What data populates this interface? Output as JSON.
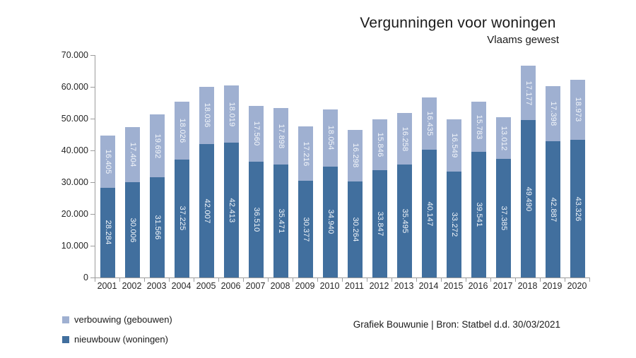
{
  "title": "Vergunningen voor woningen",
  "subtitle": "Vlaams gewest",
  "source": "Grafiek Bouwunie | Bron: Statbel d.d. 30/03/2021",
  "legend": [
    {
      "label": "verbouwing (gebouwen)",
      "color": "#9fb0d1"
    },
    {
      "label": "nieuwbouw (woningen)",
      "color": "#416f9e"
    }
  ],
  "chart_data": {
    "type": "bar",
    "stacked": true,
    "title": "Vergunningen voor woningen",
    "subtitle": "Vlaams gewest",
    "categories": [
      "2001",
      "2002",
      "2003",
      "2004",
      "2005",
      "2006",
      "2007",
      "2008",
      "2009",
      "2010",
      "2011",
      "2012",
      "2013",
      "2014",
      "2015",
      "2016",
      "2017",
      "2018",
      "2019",
      "2020"
    ],
    "series": [
      {
        "name": "nieuwbouw (woningen)",
        "color": "#416f9e",
        "values": [
          28284,
          30006,
          31566,
          37225,
          42007,
          42413,
          36510,
          35471,
          30377,
          34940,
          30264,
          33847,
          35495,
          40147,
          33272,
          39541,
          37385,
          49490,
          42887,
          43326
        ]
      },
      {
        "name": "verbouwing (gebouwen)",
        "color": "#9fb0d1",
        "values": [
          16405,
          17404,
          19692,
          18026,
          18036,
          18019,
          17560,
          17898,
          17216,
          18054,
          16298,
          15846,
          16258,
          16435,
          16549,
          15783,
          13012,
          17177,
          17398,
          18973
        ]
      }
    ],
    "xlabel": "",
    "ylabel": "",
    "ylim": [
      0,
      70000
    ],
    "ytick_step": 10000,
    "ytick_labels": [
      "0",
      "10.000",
      "20.000",
      "30.000",
      "40.000",
      "50.000",
      "60.000",
      "70.000"
    ],
    "grid": false,
    "legend_position": "bottom-left",
    "value_labels": "inside-center-rotated-90",
    "number_format": "thousands-dot"
  }
}
